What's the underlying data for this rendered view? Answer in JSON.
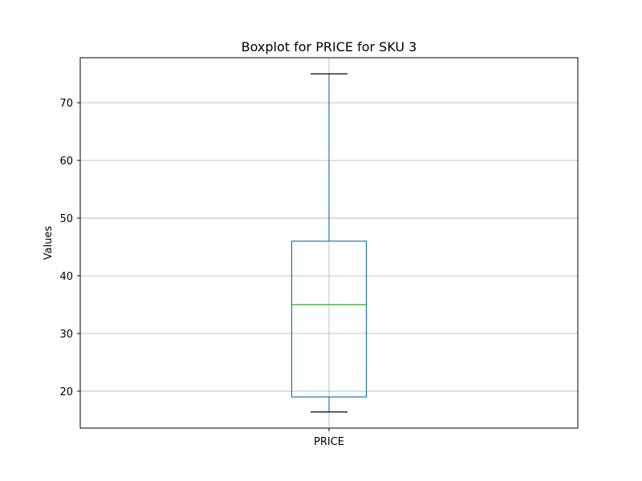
{
  "chart_data": {
    "type": "box",
    "title": "Boxplot for PRICE for SKU 3",
    "xlabel": "",
    "ylabel": "Values",
    "categories": [
      "PRICE"
    ],
    "box": {
      "whisker_low": 16.4,
      "q1": 19.0,
      "median": 35.0,
      "q3": 46.0,
      "whisker_high": 75.0
    },
    "y_ticks": [
      20,
      30,
      40,
      50,
      60,
      70
    ],
    "ylim": [
      13.6,
      77.8
    ],
    "grid": true,
    "colors": {
      "box": "#1f77b4",
      "median": "#2ca02c",
      "caps": "#000000",
      "grid": "#b0b0b0"
    }
  }
}
